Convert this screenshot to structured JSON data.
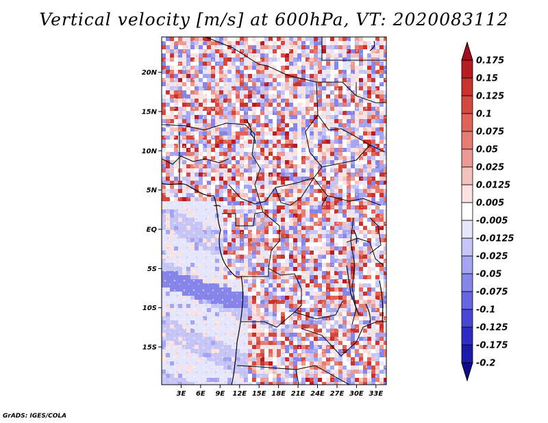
{
  "title": "Vertical velocity [m/s] at 600hPa, VT: 2020083112",
  "footer": "GrADS: IGES/COLA",
  "map": {
    "lat_ticks": [
      "20N",
      "15N",
      "10N",
      "5N",
      "EQ",
      "5S",
      "10S",
      "15S"
    ],
    "lat_values": [
      20,
      15,
      10,
      5,
      0,
      -5,
      -10,
      -15
    ],
    "lon_ticks": [
      "3E",
      "6E",
      "9E",
      "12E",
      "15E",
      "18E",
      "21E",
      "24E",
      "27E",
      "30E",
      "33E"
    ],
    "lon_values": [
      3,
      6,
      9,
      12,
      15,
      18,
      21,
      24,
      27,
      30,
      33
    ],
    "lon_range": [
      0,
      34.6
    ],
    "lat_range": [
      -19.8,
      24.5
    ]
  },
  "colorbar": {
    "labels": [
      "0.175",
      "0.15",
      "0.125",
      "0.1",
      "0.075",
      "0.05",
      "0.025",
      "0.0125",
      "0.005",
      "-0.005",
      "-0.0125",
      "-0.025",
      "-0.05",
      "-0.075",
      "-0.1",
      "-0.125",
      "-0.175",
      "-0.2"
    ],
    "colors": [
      "#a50d1f",
      "#b71b24",
      "#c8332e",
      "#d6483f",
      "#e06358",
      "#e57d74",
      "#eb9b94",
      "#f3c1bc",
      "#f9e2df",
      "#ffffff",
      "#e5e5fb",
      "#c6c6f6",
      "#a4a4f0",
      "#8585ea",
      "#6666e2",
      "#4848d6",
      "#2d2dc6",
      "#1a1aab",
      "#0d0d8c"
    ]
  }
}
